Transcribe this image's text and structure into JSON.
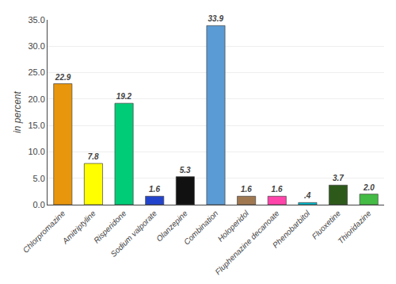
{
  "chart_data": {
    "type": "bar",
    "categories": [
      "Chlorpromazine",
      "Amitriptyline",
      "Risperidone",
      "Sodium valporate",
      "Olanzepine",
      "Combination",
      "Holoperidol",
      "Fluphenazine decanoate",
      "Phenobarbitol",
      "Fluoxetine",
      "Thioridazine"
    ],
    "values": [
      22.9,
      7.8,
      19.2,
      1.6,
      5.3,
      33.9,
      1.6,
      1.6,
      0.4,
      3.7,
      2.0
    ],
    "value_labels": [
      "22.9",
      "7.8",
      "19.2",
      "1.6",
      "5.3",
      "33.9",
      "1.6",
      "1.6",
      ".4",
      "3.7",
      "2.0"
    ],
    "colors": [
      "#E8960C",
      "#FFFF00",
      "#00CC77",
      "#2244CC",
      "#111111",
      "#5B9BD5",
      "#A07850",
      "#FF44AA",
      "#00BBCC",
      "#2D5A1B",
      "#44BB44"
    ],
    "ylabel": "in percent",
    "ylim": [
      0,
      35.0
    ],
    "yticks": [
      {
        "value": 0,
        "label": "0.0"
      },
      {
        "value": 5,
        "label": "5.0"
      },
      {
        "value": 10,
        "label": "10.0"
      },
      {
        "value": 15,
        "label": "15.0"
      },
      {
        "value": 20,
        "label": "20.0"
      },
      {
        "value": 25,
        "label": "25.0"
      },
      {
        "value": 30,
        "label": "30.0"
      },
      {
        "value": 35,
        "label": "35.0"
      }
    ],
    "grid": true,
    "data_labels": true
  }
}
